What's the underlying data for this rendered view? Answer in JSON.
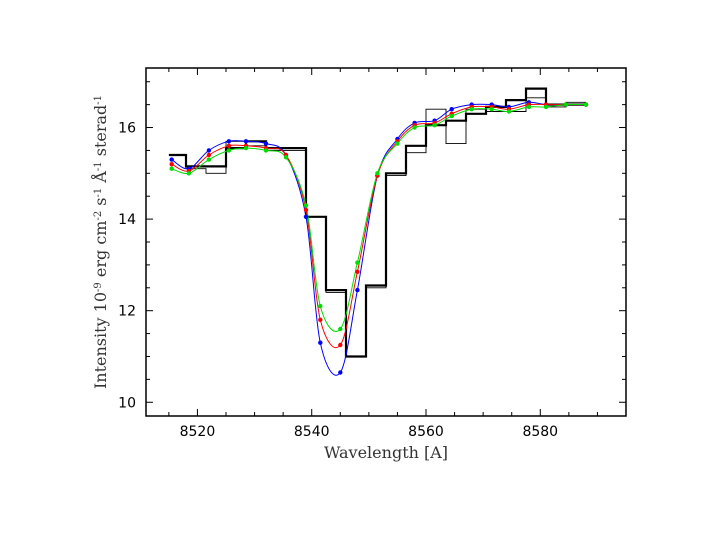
{
  "chart_data": {
    "type": "line",
    "xlabel": "Wavelength [A]",
    "ylabel": "Intensity 10^-9 erg cm^-2 s^-1 A^-1 sterad^-1",
    "ylabel_parts": {
      "t1": "Intensity 10",
      "e1": "-9",
      "t2": " erg cm",
      "e2": "-2",
      "t3": " s",
      "e3": "-1",
      "t4": " Å",
      "e4": "-1",
      "t5": " sterad",
      "e5": "-1"
    },
    "xlim": [
      8511,
      8595
    ],
    "ylim": [
      9.7,
      17.3
    ],
    "xticks": [
      8520,
      8540,
      8560,
      8580
    ],
    "xtick_labels": [
      "8520",
      "8540",
      "8560",
      "8580"
    ],
    "yticks": [
      10,
      12,
      14,
      16
    ],
    "ytick_labels": [
      "10",
      "12",
      "14",
      "16"
    ],
    "histograms": [
      {
        "name": "observed (thick)",
        "color": "#000000",
        "edges": [
          8515,
          8518,
          8521.5,
          8525,
          8528.5,
          8532,
          8535.5,
          8539,
          8542.5,
          8546,
          8549.5,
          8553,
          8556.5,
          8560,
          8563.5,
          8567,
          8570.5,
          8574,
          8577.5,
          8581,
          8584.5,
          8588
        ],
        "values": [
          15.4,
          15.15,
          15.15,
          15.55,
          15.7,
          15.55,
          15.55,
          14.05,
          12.45,
          11.0,
          12.55,
          15.0,
          15.6,
          16.05,
          16.15,
          16.3,
          16.45,
          16.6,
          16.85,
          16.5,
          16.5
        ]
      },
      {
        "name": "observed (thin)",
        "color": "#000000",
        "edges": [
          8515,
          8518,
          8521.5,
          8525,
          8528.5,
          8532,
          8535.5,
          8539,
          8542.5,
          8546,
          8549.5,
          8553,
          8556.5,
          8560,
          8563.5,
          8567,
          8570.5,
          8574,
          8577.5,
          8581,
          8584.5,
          8588
        ],
        "values": [
          15.4,
          15.1,
          15.0,
          15.7,
          15.6,
          15.5,
          15.5,
          14.05,
          12.4,
          11.0,
          12.5,
          14.95,
          15.45,
          16.4,
          15.65,
          16.4,
          16.35,
          16.35,
          16.65,
          16.45,
          16.55
        ]
      }
    ],
    "x_points": [
      8515.5,
      8518.5,
      8522,
      8525.5,
      8528.5,
      8532,
      8535.5,
      8539,
      8541.5,
      8545,
      8548,
      8551.5,
      8555,
      8558,
      8561.5,
      8564.5,
      8568,
      8571.5,
      8574.5,
      8578,
      8581,
      8584.5,
      8588
    ],
    "series": [
      {
        "name": "blue model",
        "color": "#0000ff",
        "values": [
          15.3,
          15.1,
          15.5,
          15.7,
          15.7,
          15.65,
          15.4,
          14.05,
          11.3,
          10.65,
          12.45,
          14.95,
          15.75,
          16.1,
          16.15,
          16.4,
          16.5,
          16.5,
          16.45,
          16.55,
          16.5,
          16.5,
          16.5
        ]
      },
      {
        "name": "red model",
        "color": "#ff0000",
        "values": [
          15.2,
          15.05,
          15.4,
          15.6,
          15.6,
          15.55,
          15.4,
          14.2,
          11.8,
          11.25,
          12.85,
          14.95,
          15.7,
          16.05,
          16.1,
          16.3,
          16.45,
          16.45,
          16.4,
          16.5,
          16.5,
          16.5,
          16.5
        ]
      },
      {
        "name": "green model",
        "color": "#00dd00",
        "values": [
          15.1,
          15.0,
          15.3,
          15.5,
          15.55,
          15.5,
          15.35,
          14.3,
          12.1,
          11.6,
          13.05,
          15.0,
          15.65,
          16.0,
          16.05,
          16.25,
          16.4,
          16.4,
          16.35,
          16.45,
          16.45,
          16.5,
          16.5
        ]
      }
    ],
    "grid": false,
    "legend": "none"
  }
}
